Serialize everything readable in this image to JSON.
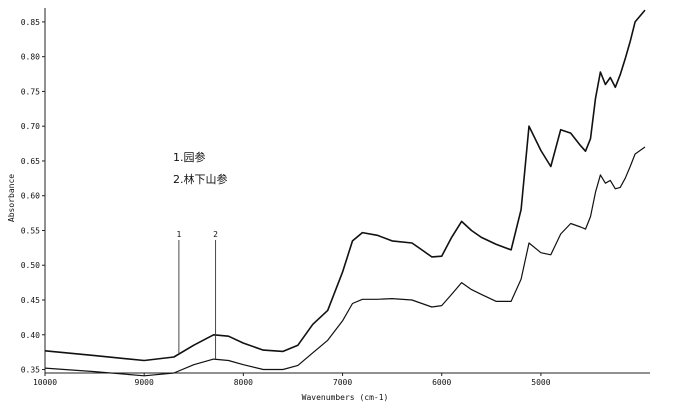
{
  "chart_data": {
    "type": "line",
    "title": "",
    "xlabel": "Wavenumbers (cm-1)",
    "ylabel": "Absorbance",
    "xlim": [
      10000,
      3900
    ],
    "ylim": [
      0.345,
      0.87
    ],
    "x_ticks": [
      {
        "value": 10000,
        "label": "10000"
      },
      {
        "value": 9000,
        "label": "9000"
      },
      {
        "value": 8000,
        "label": "8000"
      },
      {
        "value": 7000,
        "label": "7000"
      },
      {
        "value": 6000,
        "label": "6000"
      },
      {
        "value": 5000,
        "label": "5000"
      }
    ],
    "y_ticks": [
      {
        "value": 0.35,
        "label": "0.35"
      },
      {
        "value": 0.4,
        "label": "0.40"
      },
      {
        "value": 0.45,
        "label": "0.45"
      },
      {
        "value": 0.5,
        "label": "0.50"
      },
      {
        "value": 0.55,
        "label": "0.55"
      },
      {
        "value": 0.6,
        "label": "0.60"
      },
      {
        "value": 0.65,
        "label": "0.65"
      },
      {
        "value": 0.7,
        "label": "0.70"
      },
      {
        "value": 0.75,
        "label": "0.75"
      },
      {
        "value": 0.8,
        "label": "0.80"
      },
      {
        "value": 0.85,
        "label": "0.85"
      }
    ],
    "legend": [
      "1.园参",
      "2.林下山参"
    ],
    "markers": [
      {
        "label": "1",
        "x": 8650
      },
      {
        "label": "2",
        "x": 8280
      }
    ],
    "series": [
      {
        "name": "1.园参",
        "x": [
          10000,
          9500,
          9000,
          8700,
          8500,
          8300,
          8150,
          8000,
          7800,
          7600,
          7450,
          7300,
          7150,
          7000,
          6900,
          6800,
          6650,
          6500,
          6300,
          6200,
          6100,
          6000,
          5900,
          5800,
          5700,
          5600,
          5450,
          5300,
          5200,
          5120,
          5000,
          4900,
          4800,
          4700,
          4600,
          4550,
          4500,
          4450,
          4400,
          4350,
          4300,
          4250,
          4200,
          4150,
          4100,
          4050,
          3950
        ],
        "y": [
          0.377,
          0.37,
          0.363,
          0.368,
          0.385,
          0.4,
          0.398,
          0.388,
          0.378,
          0.376,
          0.385,
          0.415,
          0.435,
          0.49,
          0.535,
          0.547,
          0.543,
          0.535,
          0.532,
          0.522,
          0.512,
          0.513,
          0.54,
          0.563,
          0.55,
          0.54,
          0.53,
          0.522,
          0.58,
          0.7,
          0.665,
          0.642,
          0.695,
          0.69,
          0.672,
          0.664,
          0.682,
          0.74,
          0.778,
          0.76,
          0.77,
          0.756,
          0.774,
          0.797,
          0.822,
          0.85,
          0.867
        ]
      },
      {
        "name": "2.林下山参",
        "x": [
          10000,
          9500,
          9000,
          8700,
          8500,
          8300,
          8150,
          8000,
          7800,
          7600,
          7450,
          7300,
          7150,
          7000,
          6900,
          6800,
          6650,
          6500,
          6300,
          6200,
          6100,
          6000,
          5900,
          5800,
          5700,
          5600,
          5450,
          5300,
          5200,
          5120,
          5000,
          4900,
          4800,
          4700,
          4600,
          4550,
          4500,
          4450,
          4400,
          4350,
          4300,
          4250,
          4200,
          4150,
          4100,
          4050,
          3950
        ],
        "y": [
          0.352,
          0.347,
          0.341,
          0.345,
          0.357,
          0.365,
          0.363,
          0.357,
          0.35,
          0.35,
          0.356,
          0.374,
          0.392,
          0.42,
          0.445,
          0.451,
          0.451,
          0.452,
          0.45,
          0.445,
          0.44,
          0.442,
          0.458,
          0.475,
          0.465,
          0.458,
          0.448,
          0.448,
          0.48,
          0.532,
          0.518,
          0.515,
          0.545,
          0.56,
          0.555,
          0.552,
          0.57,
          0.605,
          0.63,
          0.618,
          0.622,
          0.61,
          0.612,
          0.625,
          0.642,
          0.66,
          0.67
        ]
      }
    ]
  }
}
